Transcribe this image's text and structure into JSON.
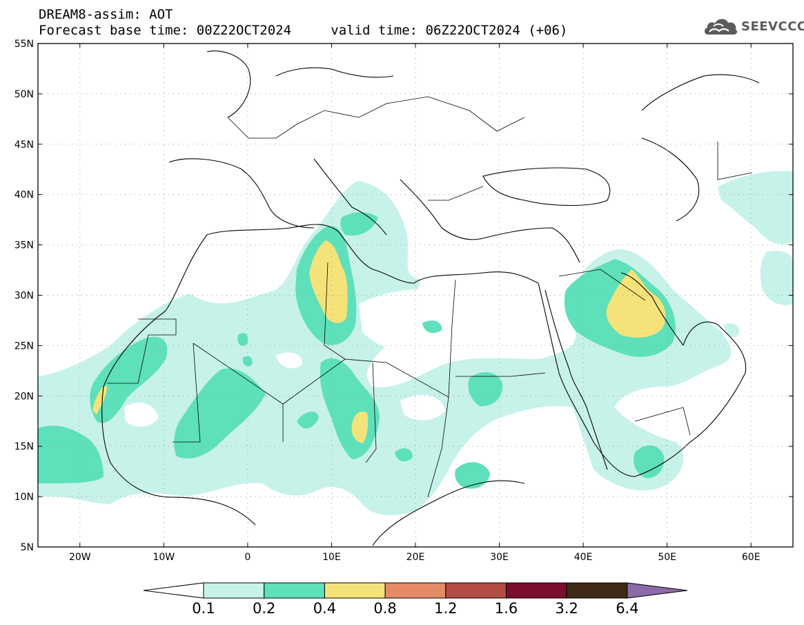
{
  "header": {
    "title": "DREAM8-assim: AOT",
    "forecast_label": "Forecast base time: 00Z22OCT2024",
    "valid_label": "valid time: 06Z22OCT2024 (+06)"
  },
  "logo": {
    "text": "SEEVCCC",
    "icon": "cloud-icon"
  },
  "map": {
    "variable": "AOT",
    "lon_range": [
      -25,
      65
    ],
    "lat_range": [
      5,
      55
    ],
    "grid": true,
    "lon_ticks": [
      {
        "lon": -20,
        "label": "20W"
      },
      {
        "lon": -10,
        "label": "10W"
      },
      {
        "lon": 0,
        "label": "0"
      },
      {
        "lon": 10,
        "label": "10E"
      },
      {
        "lon": 20,
        "label": "20E"
      },
      {
        "lon": 30,
        "label": "30E"
      },
      {
        "lon": 40,
        "label": "40E"
      },
      {
        "lon": 50,
        "label": "50E"
      },
      {
        "lon": 60,
        "label": "60E"
      }
    ],
    "lat_ticks": [
      {
        "lat": 5,
        "label": "5N"
      },
      {
        "lat": 10,
        "label": "10N"
      },
      {
        "lat": 15,
        "label": "15N"
      },
      {
        "lat": 20,
        "label": "20N"
      },
      {
        "lat": 25,
        "label": "25N"
      },
      {
        "lat": 30,
        "label": "30N"
      },
      {
        "lat": 35,
        "label": "35N"
      },
      {
        "lat": 40,
        "label": "40N"
      },
      {
        "lat": 45,
        "label": "45N"
      },
      {
        "lat": 50,
        "label": "50N"
      },
      {
        "lat": 55,
        "label": "55N"
      }
    ]
  },
  "colorbar": {
    "levels": [
      "0.1",
      "0.2",
      "0.4",
      "0.8",
      "1.2",
      "1.6",
      "3.2",
      "6.4"
    ],
    "under_color": "#ffffff",
    "colors": [
      "#c6f2ea",
      "#5ee0bb",
      "#f5e37a",
      "#e58c66",
      "#b24c43",
      "#7a0e2c",
      "#3f2a17"
    ],
    "over_color": "#8c6aa8"
  }
}
